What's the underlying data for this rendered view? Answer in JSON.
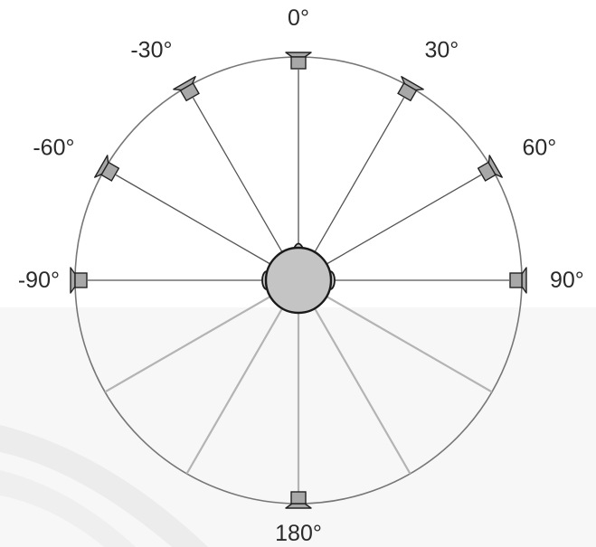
{
  "diagram": {
    "speakers": [
      {
        "id": "speaker-0",
        "label": "0°",
        "angle": 0
      },
      {
        "id": "speaker-30",
        "label": "30°",
        "angle": 30
      },
      {
        "id": "speaker-minus-30",
        "label": "-30°",
        "angle": -30
      },
      {
        "id": "speaker-60",
        "label": "60°",
        "angle": 60
      },
      {
        "id": "speaker-minus-60",
        "label": "-60°",
        "angle": -60
      },
      {
        "id": "speaker-90",
        "label": "90°",
        "angle": 90
      },
      {
        "id": "speaker-minus-90",
        "label": "-90°",
        "angle": -90
      },
      {
        "id": "speaker-180",
        "label": "180°",
        "angle": 180
      }
    ],
    "rear_directions": [
      120,
      150,
      180,
      210,
      240
    ],
    "colors": {
      "circle": "#777777",
      "front_lines": "#555555",
      "rear_lines": "#b4b4b4",
      "speaker_fill": "#a8a8a8",
      "speaker_stroke": "#222222",
      "head_fill": "#c4c4c4",
      "head_stroke": "#1a1a1a",
      "text": "#2a2a2a",
      "watermark_band": "#f1f1f1"
    }
  }
}
